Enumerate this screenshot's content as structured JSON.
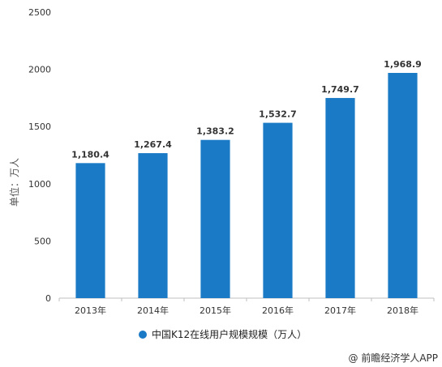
{
  "chart_data": {
    "type": "bar",
    "categories": [
      "2013年",
      "2014年",
      "2015年",
      "2016年",
      "2017年",
      "2018年"
    ],
    "series": [
      {
        "name": "中国K12在线用户规模规模（万人）",
        "values": [
          1180.4,
          1267.4,
          1383.2,
          1532.7,
          1749.7,
          1968.9
        ],
        "value_labels": [
          "1,180.4",
          "1,267.4",
          "1,383.2",
          "1,532.7",
          "1,749.7",
          "1,968.9"
        ],
        "color": "#1a7ac5"
      }
    ],
    "ylabel": "单位：万人",
    "ylim": [
      0,
      2500
    ],
    "yticks": [
      0,
      500,
      1000,
      1500,
      2000,
      2500
    ],
    "grid": false,
    "legend_position": "bottom"
  },
  "source": "@ 前瞻经济学人APP"
}
